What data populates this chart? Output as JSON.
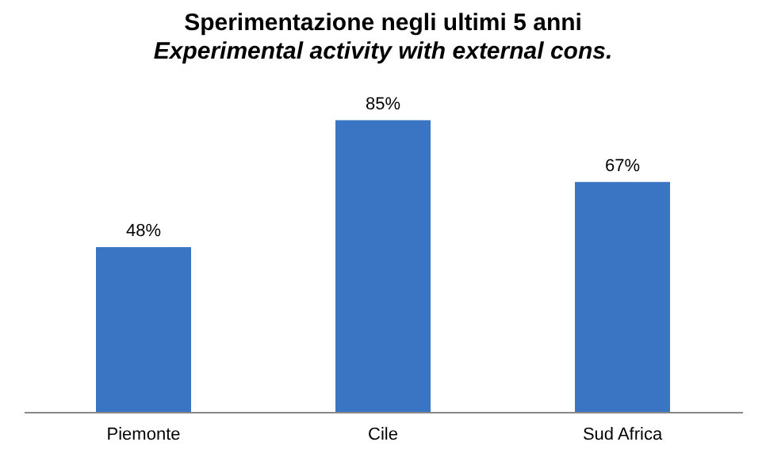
{
  "chart_data": {
    "type": "bar",
    "title": "Sperimentazione negli ultimi 5 anni",
    "subtitle": "Experimental activity with external cons.",
    "categories": [
      "Piemonte",
      "Cile",
      "Sud Africa"
    ],
    "values": [
      48,
      85,
      67
    ],
    "value_labels": [
      "48%",
      "85%",
      "67%"
    ],
    "color": "#3a75c4",
    "grid": false,
    "tick_labels": "x"
  }
}
